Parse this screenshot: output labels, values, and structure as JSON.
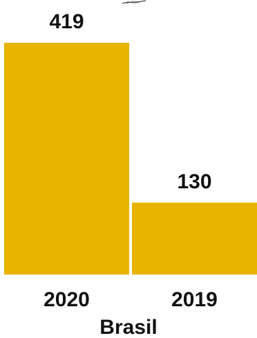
{
  "colors": {
    "bar": "#e8b400",
    "text": "#111111",
    "background": "#ffffff"
  },
  "chart_data": {
    "type": "bar",
    "categories": [
      "2020",
      "2019"
    ],
    "values": [
      419,
      130
    ],
    "data_labels": [
      "419",
      "130"
    ],
    "group_label": "Brasil",
    "title": "",
    "xlabel": "",
    "ylabel": "",
    "ylim": [
      0,
      419
    ],
    "grid": false,
    "legend": "none"
  }
}
